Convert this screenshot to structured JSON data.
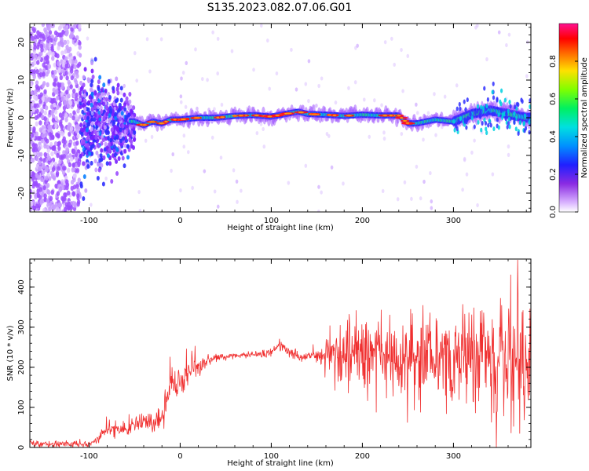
{
  "figure_title": "S135.2023.082.07.06.G01",
  "chart_data": [
    {
      "type": "heatmap",
      "xlabel": "Height of straight line (km)",
      "ylabel": "Frequency (Hz)",
      "xlim": [
        -165,
        385
      ],
      "ylim": [
        -25,
        25
      ],
      "x_ticks": [
        -100,
        0,
        100,
        200,
        300
      ],
      "y_ticks": [
        -20,
        -10,
        0,
        10,
        20
      ],
      "colorbar": {
        "label": "Normalized spectral amplitude",
        "range": [
          0,
          1
        ],
        "ticks": [
          0.0,
          0.2,
          0.4,
          0.6,
          0.8
        ]
      },
      "ridge": {
        "x": [
          -50,
          -40,
          -30,
          -20,
          -10,
          0,
          20,
          40,
          60,
          80,
          100,
          120,
          130,
          140,
          160,
          180,
          200,
          220,
          240,
          250,
          260,
          280,
          300,
          320,
          340,
          360,
          380
        ],
        "y": [
          -1,
          -2,
          -1,
          -1.5,
          -0.5,
          -0.5,
          0,
          0,
          0.5,
          0.7,
          0.3,
          1.2,
          1.6,
          1.0,
          0.8,
          0.5,
          0.8,
          0.6,
          0.6,
          -1.5,
          -1.5,
          -0.5,
          -1,
          1,
          2,
          1,
          0
        ]
      },
      "grid": false
    },
    {
      "type": "line",
      "xlabel": "Height of straight line (km)",
      "ylabel": "SNR (10 * v/v)",
      "xlim": [
        -165,
        385
      ],
      "ylim": [
        0,
        470
      ],
      "x_ticks": [
        -100,
        0,
        100,
        200,
        300
      ],
      "y_ticks": [
        0,
        100,
        200,
        300,
        400
      ],
      "series_color": "#f03030",
      "envelope": {
        "x": [
          -165,
          -120,
          -100,
          -90,
          -80,
          -70,
          -60,
          -50,
          -40,
          -30,
          -20,
          -10,
          0,
          10,
          20,
          40,
          60,
          80,
          100,
          110,
          120,
          130,
          140,
          150,
          160,
          180,
          200,
          220,
          240,
          260,
          280,
          300,
          320,
          340,
          360,
          385
        ],
        "center": [
          10,
          8,
          8,
          20,
          45,
          50,
          45,
          55,
          65,
          55,
          75,
          150,
          160,
          190,
          210,
          225,
          230,
          232,
          235,
          255,
          240,
          225,
          230,
          225,
          230,
          235,
          230,
          240,
          230,
          220,
          225,
          215,
          225,
          210,
          215,
          210
        ],
        "spread": [
          10,
          8,
          10,
          15,
          20,
          20,
          22,
          25,
          25,
          30,
          50,
          55,
          45,
          35,
          25,
          10,
          8,
          8,
          12,
          25,
          15,
          12,
          15,
          20,
          50,
          80,
          90,
          100,
          110,
          110,
          120,
          130,
          140,
          150,
          160,
          170
        ]
      },
      "grid": false
    }
  ],
  "colors": {
    "axis": "#000000",
    "snr_line": "#f03030"
  }
}
